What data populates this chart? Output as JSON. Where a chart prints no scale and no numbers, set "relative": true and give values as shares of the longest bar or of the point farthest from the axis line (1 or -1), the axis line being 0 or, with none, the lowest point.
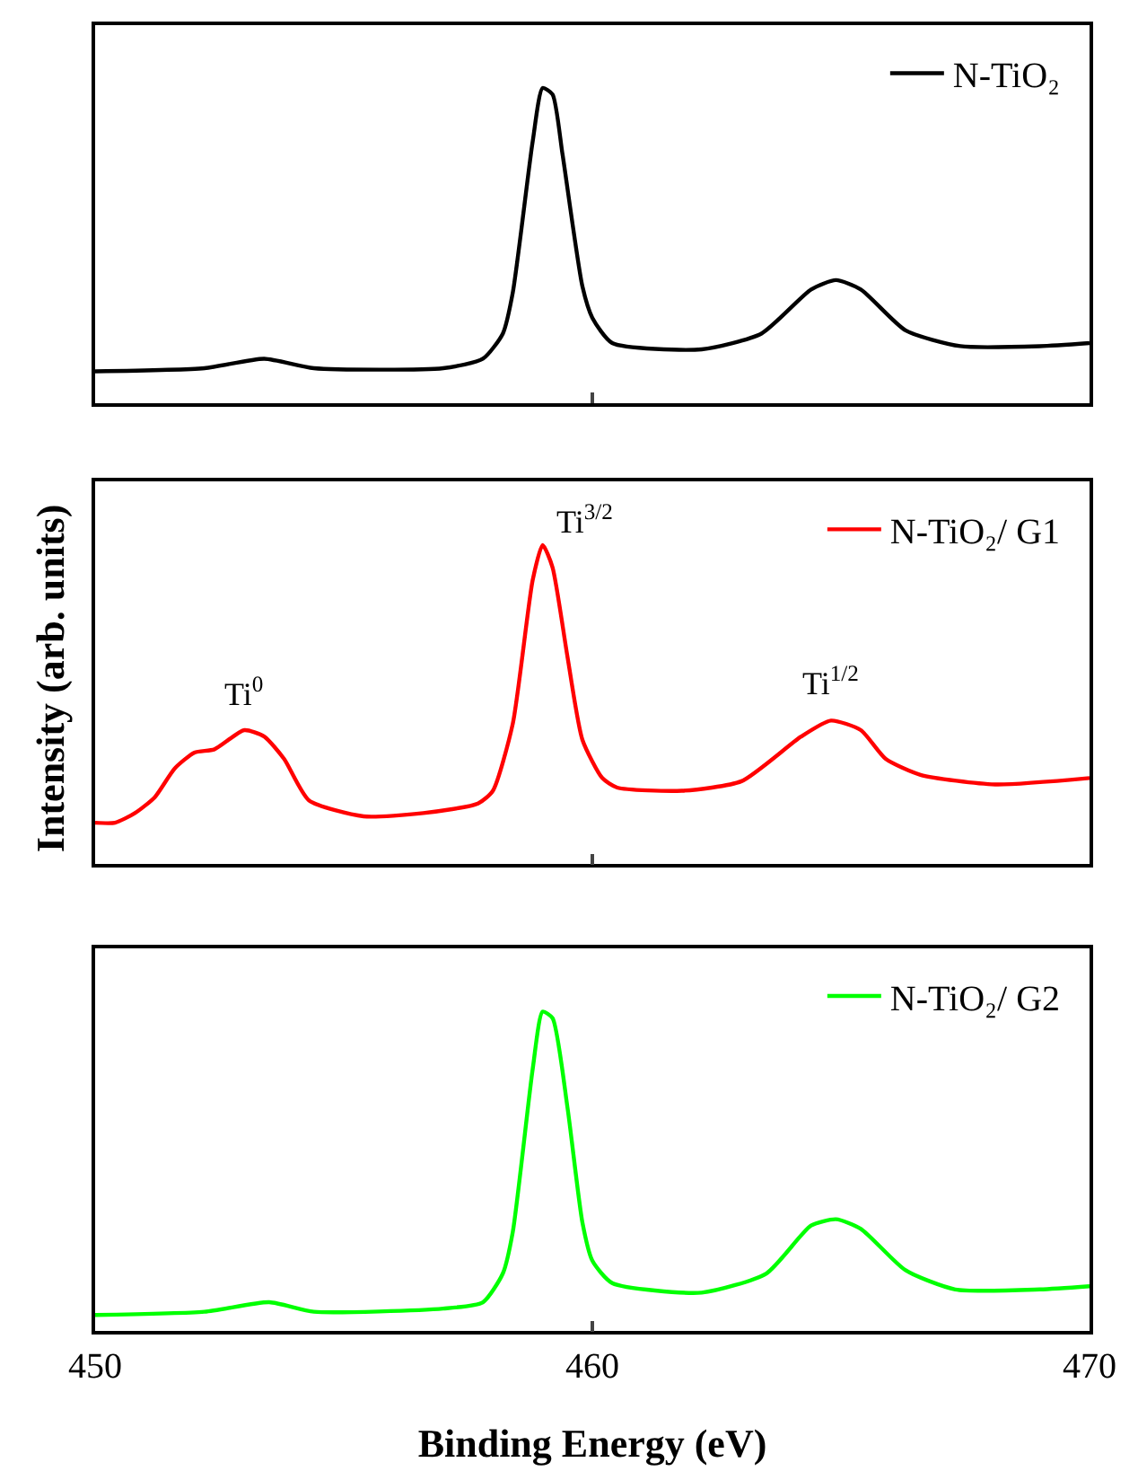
{
  "chart_data": [
    {
      "type": "line",
      "relative": true,
      "xlim": [
        450,
        470
      ],
      "xticks": [
        {
          "value": 450,
          "label": null
        },
        {
          "value": 460,
          "label": null
        },
        {
          "value": 470,
          "label": null
        }
      ],
      "tick_labels": false,
      "legend": "top right",
      "x": [
        450,
        452.2,
        453.4,
        454.4,
        457.0,
        457.8,
        458.2,
        458.4,
        458.8,
        459.0,
        459.2,
        459.4,
        459.8,
        460.0,
        460.4,
        462.2,
        463.4,
        464.4,
        464.9,
        465.4,
        466.3,
        467.4,
        469.0,
        470
      ],
      "series": [
        {
          "name": "N-TiO₂",
          "color": "#000000",
          "values": [
            0.1,
            0.11,
            0.14,
            0.11,
            0.11,
            0.14,
            0.22,
            0.35,
            0.83,
            1.0,
            0.98,
            0.79,
            0.37,
            0.27,
            0.19,
            0.17,
            0.22,
            0.36,
            0.39,
            0.36,
            0.23,
            0.18,
            0.18,
            0.19
          ]
        }
      ]
    },
    {
      "type": "line",
      "relative": true,
      "xlim": [
        450,
        470
      ],
      "xticks": [
        {
          "value": 450,
          "label": null
        },
        {
          "value": 460,
          "label": null
        },
        {
          "value": 470,
          "label": null
        }
      ],
      "tick_labels": false,
      "legend": "top right",
      "ylabel": "Intensity (arb. units)",
      "x": [
        450,
        450.4,
        450.8,
        451.2,
        451.6,
        452.0,
        452.4,
        453.0,
        453.4,
        453.8,
        454.3,
        455.4,
        456.6,
        457.7,
        458.0,
        458.4,
        458.8,
        459.0,
        459.2,
        459.5,
        459.8,
        460.2,
        460.5,
        461.8,
        463.0,
        464.2,
        464.8,
        465.4,
        465.9,
        466.6,
        468.1,
        470
      ],
      "series": [
        {
          "name": "N-TiO₂/ G1",
          "color": "#ff0000",
          "values": [
            0.13,
            0.13,
            0.16,
            0.21,
            0.3,
            0.35,
            0.36,
            0.42,
            0.4,
            0.33,
            0.2,
            0.15,
            0.16,
            0.19,
            0.23,
            0.44,
            0.89,
            1.0,
            0.93,
            0.65,
            0.39,
            0.27,
            0.24,
            0.23,
            0.26,
            0.4,
            0.45,
            0.42,
            0.33,
            0.28,
            0.25,
            0.27
          ]
        }
      ],
      "annotations": [
        {
          "text": "Ti$^{0}$",
          "x": 453.0,
          "y": 0.42
        },
        {
          "text": "Ti$^{3/2}$",
          "x": 459.0,
          "y": 1.0
        },
        {
          "text": "Ti$^{1/2}$",
          "x": 464.8,
          "y": 0.45
        }
      ]
    },
    {
      "type": "line",
      "relative": true,
      "xlim": [
        450,
        470
      ],
      "xticks": [
        450,
        460,
        470
      ],
      "tick_labels": "x",
      "legend": "top right",
      "xlabel": "Binding Energy (eV)",
      "x": [
        450,
        452.2,
        453.5,
        454.4,
        457.0,
        457.8,
        458.2,
        458.4,
        458.8,
        459.0,
        459.2,
        459.5,
        459.8,
        460.0,
        460.4,
        462.2,
        463.5,
        464.4,
        464.9,
        465.4,
        466.3,
        467.3,
        469.0,
        470
      ],
      "series": [
        {
          "name": "N-TiO₂/ G2",
          "color": "#00ff00",
          "values": [
            0.05,
            0.06,
            0.09,
            0.06,
            0.07,
            0.09,
            0.18,
            0.31,
            0.82,
            1.0,
            0.98,
            0.7,
            0.34,
            0.22,
            0.15,
            0.12,
            0.18,
            0.33,
            0.35,
            0.32,
            0.19,
            0.13,
            0.13,
            0.14
          ]
        }
      ]
    }
  ]
}
